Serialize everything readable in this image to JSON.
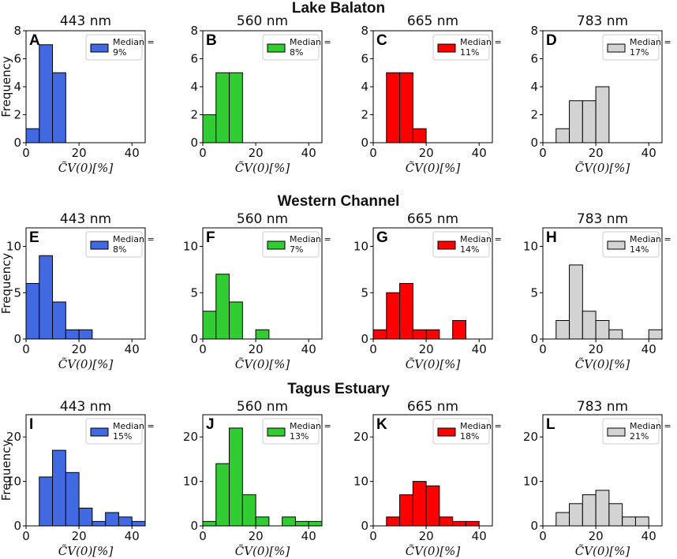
{
  "chart_data": [
    {
      "site": "Lake Balaton",
      "x_label": "C̃V(0)[%]",
      "y_label": "Frequency",
      "bin_width": 5,
      "xlim": [
        0,
        45
      ],
      "xticks": [
        0,
        20,
        40
      ],
      "ylim": [
        0,
        8
      ],
      "yticks": [
        0,
        2,
        4,
        6,
        8
      ],
      "panels": [
        {
          "letter": "A",
          "title": "443 nm",
          "type": "bar",
          "color": "#4169e1",
          "median_label": "Median =",
          "median_value": "9%",
          "bins": [
            0,
            5,
            10
          ],
          "counts": [
            1,
            7,
            5
          ]
        },
        {
          "letter": "B",
          "title": "560 nm",
          "type": "bar",
          "color": "#32cd32",
          "median_label": "Median =",
          "median_value": "8%",
          "bins": [
            0,
            5,
            10
          ],
          "counts": [
            2,
            5,
            5
          ]
        },
        {
          "letter": "C",
          "title": "665 nm",
          "type": "bar",
          "color": "#ff0000",
          "median_label": "Median =",
          "median_value": "11%",
          "bins": [
            5,
            10,
            15
          ],
          "counts": [
            5,
            5,
            1
          ]
        },
        {
          "letter": "D",
          "title": "783 nm",
          "type": "bar",
          "color": "#d3d3d3",
          "median_label": "Median =",
          "median_value": "17%",
          "bins": [
            5,
            10,
            15,
            20
          ],
          "counts": [
            1,
            3,
            3,
            4
          ]
        }
      ]
    },
    {
      "site": "Western Channel",
      "x_label": "C̃V(0)[%]",
      "y_label": "Frequency",
      "bin_width": 5,
      "xlim": [
        0,
        45
      ],
      "xticks": [
        0,
        20,
        40
      ],
      "ylim": [
        0,
        12
      ],
      "yticks": [
        0,
        5,
        10
      ],
      "panels": [
        {
          "letter": "E",
          "title": "443 nm",
          "type": "bar",
          "color": "#4169e1",
          "median_label": "Median =",
          "median_value": "8%",
          "bins": [
            0,
            5,
            10,
            15,
            20
          ],
          "counts": [
            6,
            9,
            4,
            1,
            1
          ]
        },
        {
          "letter": "F",
          "title": "560 nm",
          "type": "bar",
          "color": "#32cd32",
          "median_label": "Median =",
          "median_value": "7%",
          "bins": [
            0,
            5,
            10,
            20
          ],
          "counts": [
            3,
            7,
            4,
            1
          ]
        },
        {
          "letter": "G",
          "title": "665 nm",
          "type": "bar",
          "color": "#ff0000",
          "median_label": "Median =",
          "median_value": "14%",
          "bins": [
            0,
            5,
            10,
            15,
            20,
            30
          ],
          "counts": [
            1,
            5,
            6,
            1,
            1,
            2
          ]
        },
        {
          "letter": "H",
          "title": "783 nm",
          "type": "bar",
          "color": "#d3d3d3",
          "median_label": "Median =",
          "median_value": "14%",
          "bins": [
            5,
            10,
            15,
            20,
            25,
            40
          ],
          "counts": [
            2,
            8,
            3,
            2,
            1,
            1
          ]
        }
      ]
    },
    {
      "site": "Tagus Estuary",
      "x_label": "C̃V(0)[%]",
      "y_label": "Frequency",
      "bin_width": 5,
      "xlim": [
        0,
        45
      ],
      "xticks": [
        0,
        20,
        40
      ],
      "ylim": [
        0,
        25
      ],
      "yticks": [
        0,
        10,
        20
      ],
      "panels": [
        {
          "letter": "I",
          "title": "443 nm",
          "type": "bar",
          "color": "#4169e1",
          "median_label": "Median =",
          "median_value": "15%",
          "bins": [
            5,
            10,
            15,
            20,
            25,
            30,
            35,
            40
          ],
          "counts": [
            11,
            17,
            12,
            4,
            1,
            3,
            2,
            1
          ]
        },
        {
          "letter": "J",
          "title": "560 nm",
          "type": "bar",
          "color": "#32cd32",
          "median_label": "Median =",
          "median_value": "13%",
          "bins": [
            0,
            5,
            10,
            15,
            20,
            30,
            35,
            40
          ],
          "counts": [
            1,
            14,
            22,
            7,
            2,
            2,
            1,
            1
          ]
        },
        {
          "letter": "K",
          "title": "665 nm",
          "type": "bar",
          "color": "#ff0000",
          "median_label": "Median =",
          "median_value": "18%",
          "bins": [
            5,
            10,
            15,
            20,
            25,
            30,
            35
          ],
          "counts": [
            2,
            7,
            10,
            9,
            2,
            1,
            1
          ]
        },
        {
          "letter": "L",
          "title": "783 nm",
          "type": "bar",
          "color": "#d3d3d3",
          "median_label": "Median =",
          "median_value": "21%",
          "bins": [
            5,
            10,
            15,
            20,
            25,
            30,
            35
          ],
          "counts": [
            3,
            5,
            7,
            8,
            5,
            2,
            2
          ]
        }
      ]
    }
  ]
}
